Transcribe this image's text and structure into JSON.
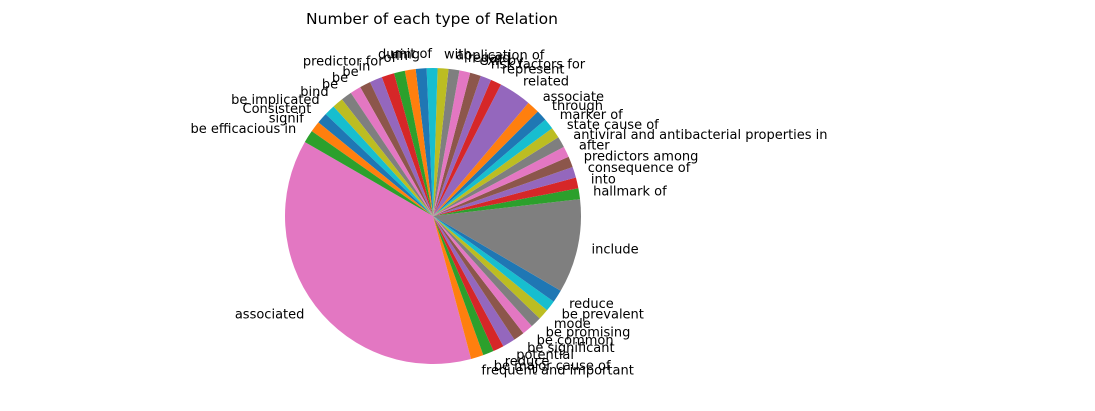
{
  "chart_data": {
    "type": "pie",
    "title": "Number of each type of Relation",
    "palette": [
      "#1f77b4",
      "#ff7f0e",
      "#2ca02c",
      "#d62728",
      "#9467bd",
      "#8c564b",
      "#e377c2",
      "#7f7f7f",
      "#bcbd22",
      "#17becf"
    ],
    "slices": [
      {
        "label": "associated",
        "value": 9.5,
        "color": "#e377c2"
      },
      {
        "label": "frequent and important",
        "value": 0.35
      },
      {
        "label": "be major cause of",
        "value": 0.3
      },
      {
        "label": "reduce",
        "value": 0.3
      },
      {
        "label": "potential",
        "value": 0.35
      },
      {
        "label": "be significant",
        "value": 0.3
      },
      {
        "label": "be common",
        "value": 0.3
      },
      {
        "label": "be promising",
        "value": 0.3
      },
      {
        "label": "mode",
        "value": 0.3
      },
      {
        "label": "be prevalent",
        "value": 0.3
      },
      {
        "label": "reduce",
        "value": 0.35
      },
      {
        "label": "include",
        "value": 2.6,
        "color": "#7f7f7f"
      },
      {
        "label": "hallmark of",
        "value": 0.3
      },
      {
        "label": "into",
        "value": 0.3
      },
      {
        "label": "consequence of",
        "value": 0.3
      },
      {
        "label": "predictors among",
        "value": 0.3
      },
      {
        "label": "after",
        "value": 0.3
      },
      {
        "label": "antiviral and antibacterial properties in",
        "value": 0.3
      },
      {
        "label": "state cause of",
        "value": 0.3
      },
      {
        "label": "marker of",
        "value": 0.3
      },
      {
        "label": "through",
        "value": 0.3
      },
      {
        "label": "associate",
        "value": 0.35
      },
      {
        "label": "related",
        "value": 0.9,
        "color": "#9467bd"
      },
      {
        "label": "represent",
        "value": 0.3
      },
      {
        "label": "risk factors for",
        "value": 0.3
      },
      {
        "label": "exit by",
        "value": 0.3
      },
      {
        "label": "regard",
        "value": 0.3
      },
      {
        "label": "application of",
        "value": 0.3
      },
      {
        "label": "with",
        "value": 0.3
      },
      {
        "label": "unit of",
        "value": 0.3
      },
      {
        "label": "during",
        "value": 0.3
      },
      {
        "label": "in",
        "value": 0.3
      },
      {
        "label": "of",
        "value": 0.3
      },
      {
        "label": "predictor for",
        "value": 0.35
      },
      {
        "label": "in",
        "value": 0.35
      },
      {
        "label": "be",
        "value": 0.3
      },
      {
        "label": "be",
        "value": 0.3
      },
      {
        "label": "be",
        "value": 0.3
      },
      {
        "label": "bind",
        "value": 0.3
      },
      {
        "label": "be implicated",
        "value": 0.3
      },
      {
        "label": "Consistent",
        "value": 0.3
      },
      {
        "label": "signif",
        "value": 0.3
      },
      {
        "label": "be efficacious in",
        "value": 0.35
      }
    ]
  }
}
